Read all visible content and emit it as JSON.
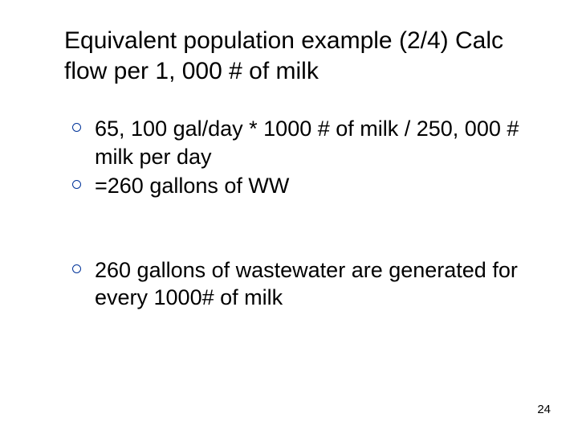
{
  "slide": {
    "title": "Equivalent population example (2/4) Calc flow per 1, 000 # of milk",
    "bullets": [
      {
        "text": "65, 100 gal/day * 1000 # of milk / 250, 000 # milk per day"
      },
      {
        "text": "=260 gallons of WW"
      },
      {
        "text": "260 gallons of wastewater are generated for every 1000# of milk"
      }
    ],
    "page_number": "24",
    "colors": {
      "background": "#ffffff",
      "text": "#000000",
      "bullet_border": "#003399"
    },
    "typography": {
      "title_fontsize": 30,
      "body_fontsize": 27,
      "pagenum_fontsize": 15,
      "title_family": "Arial",
      "body_family": "Verdana"
    }
  }
}
